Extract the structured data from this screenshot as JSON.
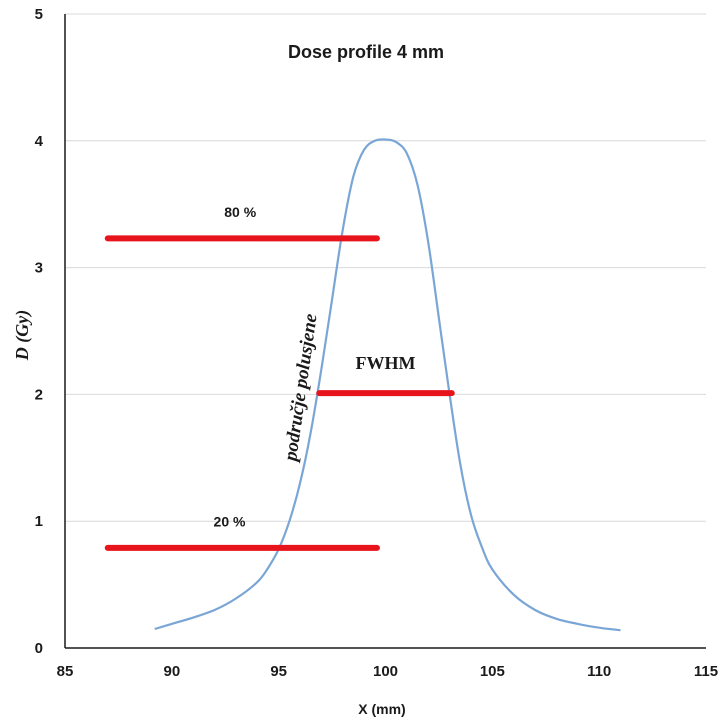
{
  "chart_data": {
    "type": "line",
    "title": "Dose profile 4 mm",
    "xlabel": "X (mm)",
    "ylabel": "D (Gy)",
    "xlim": [
      85,
      115
    ],
    "ylim": [
      0,
      5
    ],
    "xticks": [
      85,
      90,
      95,
      100,
      105,
      110,
      115
    ],
    "yticks": [
      0,
      1,
      2,
      3,
      4,
      5
    ],
    "grid": "horizontal",
    "legend": "none",
    "colors": {
      "curve": "#7aa6d6",
      "markers": "#e8141c",
      "grid": "#d9d9d9",
      "axis": "#1a1a1a"
    },
    "series": [
      {
        "x": [
          89.2,
          90,
          91,
          92,
          93,
          94,
          94.5,
          95,
          95.5,
          96,
          96.5,
          97,
          97.5,
          98,
          98.5,
          99,
          99.5,
          100,
          100.5,
          101,
          101.5,
          102,
          102.5,
          103,
          103.5,
          104,
          104.5,
          105,
          106,
          107,
          108,
          109,
          110,
          111
        ],
        "y": [
          0.15,
          0.19,
          0.24,
          0.3,
          0.39,
          0.52,
          0.63,
          0.78,
          1.0,
          1.3,
          1.7,
          2.2,
          2.75,
          3.3,
          3.72,
          3.93,
          4.0,
          4.01,
          3.99,
          3.9,
          3.65,
          3.2,
          2.6,
          2.0,
          1.45,
          1.05,
          0.8,
          0.62,
          0.42,
          0.3,
          0.23,
          0.19,
          0.16,
          0.14
        ]
      }
    ],
    "annotations": [
      {
        "label": "80 %",
        "y": 3.23,
        "x_start": 87,
        "x_end": 99.6,
        "label_x": 93.2,
        "label_y": 3.4
      },
      {
        "label": "FWHM",
        "y": 2.01,
        "x_start": 96.9,
        "x_end": 103.1,
        "label_x": 100.0,
        "label_y": 2.2
      },
      {
        "label": "20 %",
        "y": 0.79,
        "x_start": 87,
        "x_end": 99.6,
        "label_x": 92.7,
        "label_y": 0.96
      }
    ],
    "rotated_annotation": {
      "label": "područje polusjene",
      "x": 96.3,
      "y": 2.05
    }
  }
}
